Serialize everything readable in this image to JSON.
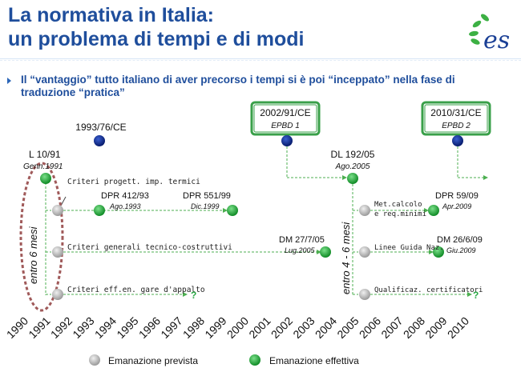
{
  "title": {
    "line1": "La normativa in Italia:",
    "line2": "un problema di tempi e di modi"
  },
  "logo": {
    "text": "es",
    "icon": "leaf-logo-icon"
  },
  "bullet": "Il “vantaggio” tutto italiano di aver precorso i tempi si è poi “inceppato” nella fase di traduzione “pratica”",
  "events": {
    "d1993_76": {
      "label": "1993/76/CE"
    },
    "d2002_91": {
      "label": "2002/91/CE",
      "sub": "EPBD 1"
    },
    "d2010_31": {
      "label": "2010/31/CE",
      "sub": "EPBD 2"
    },
    "l10_91": {
      "label": "L 10/91",
      "sub": "Genn.1991"
    },
    "dl192_05": {
      "label": "DL 192/05",
      "sub": "Ago.2005"
    },
    "dpr412": {
      "label": "DPR 412/93",
      "sub": "Ago.1993"
    },
    "dpr551": {
      "label": "DPR 551/99",
      "sub": "Dic.1999"
    },
    "dm27": {
      "label": "DM 27/7/05",
      "sub": "Lug.2005"
    },
    "dpr59": {
      "label": "DPR 59/09",
      "sub": "Apr.2009"
    },
    "dm26": {
      "label": "DM 26/6/09",
      "sub": "Giu.2009"
    }
  },
  "branches": {
    "criteri_progett": "Criteri progett. imp. termici",
    "criteri_generali": "Criteri generali tecnico-costruttivi",
    "criteri_eff": "Criteri eff.en. gare d'appalto",
    "met_calcolo_1": "Met.calcolo",
    "met_calcolo_2": "e req.minimi",
    "linee_guida": "Linee Guida Naz.",
    "qualificaz": "Qualificaz. certificatori"
  },
  "question_marks": {
    "q1": "?",
    "q2": "?"
  },
  "periods": {
    "p1": "entro 6 mesi",
    "p2": "entro 4 - 6 mesi"
  },
  "years": [
    "1990",
    "1991",
    "1992",
    "1993",
    "1994",
    "1995",
    "1996",
    "1997",
    "1998",
    "1999",
    "2000",
    "2001",
    "2002",
    "2003",
    "2004",
    "2005",
    "2006",
    "2007",
    "2008",
    "2009",
    "2010"
  ],
  "legend": {
    "prevista": "Emanazione prevista",
    "effettiva": "Emanazione effettiva"
  },
  "colors": {
    "title": "#1f4e9c",
    "dark_blue": "#0d2b8c",
    "green": "#17a02f",
    "grey": "#b5b5b5",
    "dashed_green": "#4caf50",
    "box_border": "#3aa04a",
    "oval": "#a05a5a"
  }
}
